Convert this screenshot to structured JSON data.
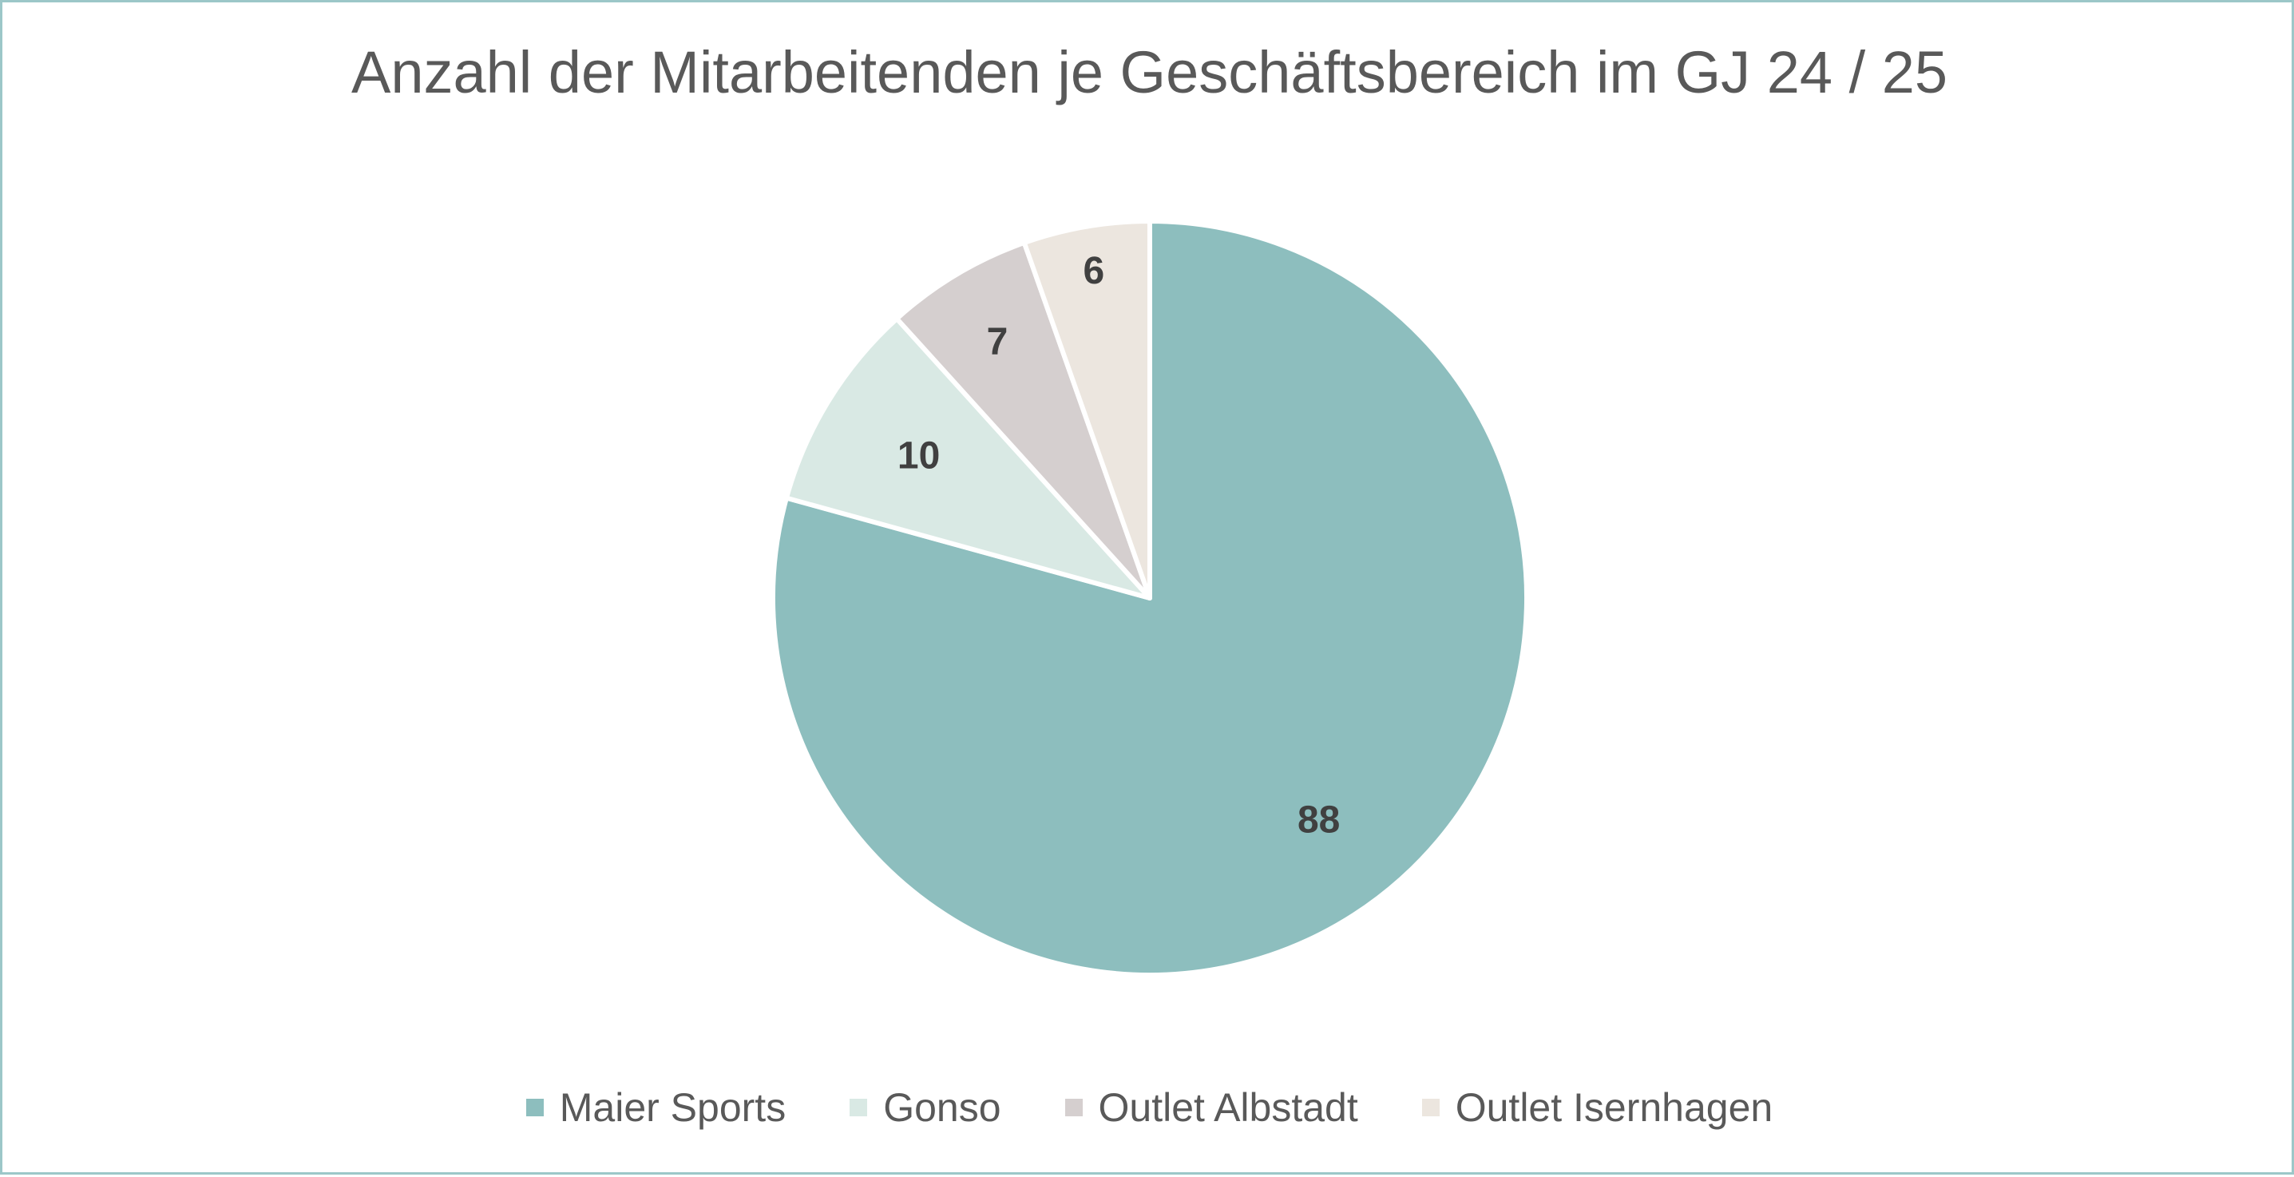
{
  "chart_data": {
    "type": "pie",
    "title": "Anzahl der Mitarbeitenden je Geschäftsbereich im GJ 24 / 25",
    "categories": [
      "Maier Sports",
      "Gonso",
      "Outlet Albstadt",
      "Outlet Isernhagen"
    ],
    "values": [
      88,
      10,
      7,
      6
    ],
    "colors": [
      "#8dbebe",
      "#d9e9e4",
      "#d5cfcf",
      "#ece6df"
    ],
    "start_angle": "12 o'clock",
    "direction": "clockwise",
    "data_labels": true,
    "legend": "bottom"
  }
}
